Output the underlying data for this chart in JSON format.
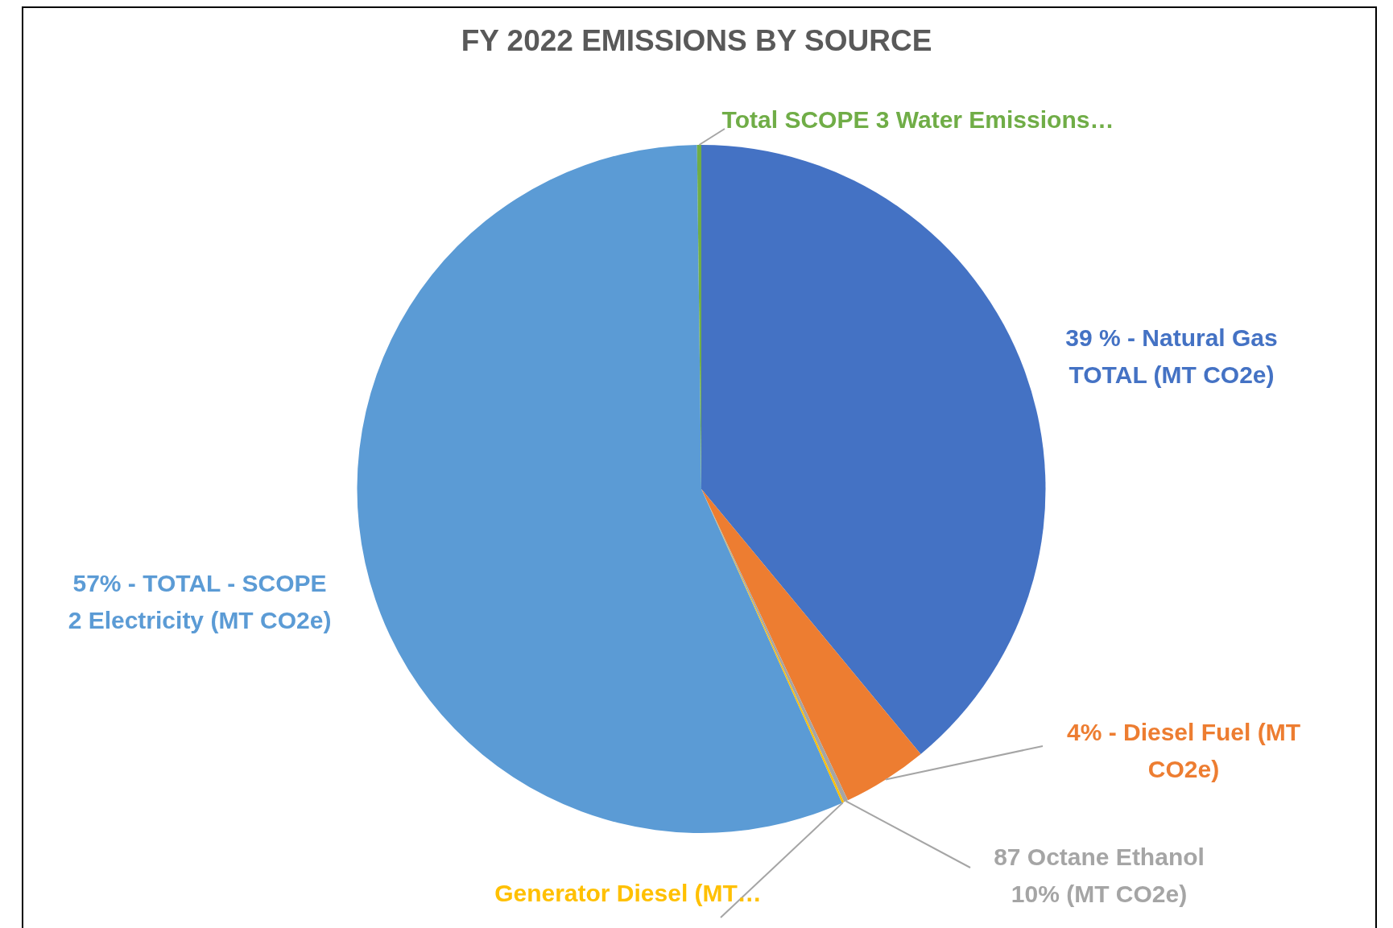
{
  "chart_data": {
    "type": "pie",
    "title": "FY 2022 EMISSIONS BY SOURCE",
    "categories": [
      "39 % - Natural Gas TOTAL (MT CO2e)",
      "4% - Diesel Fuel (MT CO2e)",
      "87 Octane Ethanol 10% (MT CO2e)",
      "Generator Diesel (MT…",
      "57% - TOTAL - SCOPE 2 Electricity (MT CO2e)",
      "Total SCOPE 3 Water Emissions…"
    ],
    "values": [
      39,
      4,
      0.2,
      0.1,
      56.5,
      0.2
    ],
    "colors": [
      "#4472c4",
      "#ed7d31",
      "#a5a5a5",
      "#ffc000",
      "#5b9bd5",
      "#70ad47"
    ],
    "legend": false
  }
}
